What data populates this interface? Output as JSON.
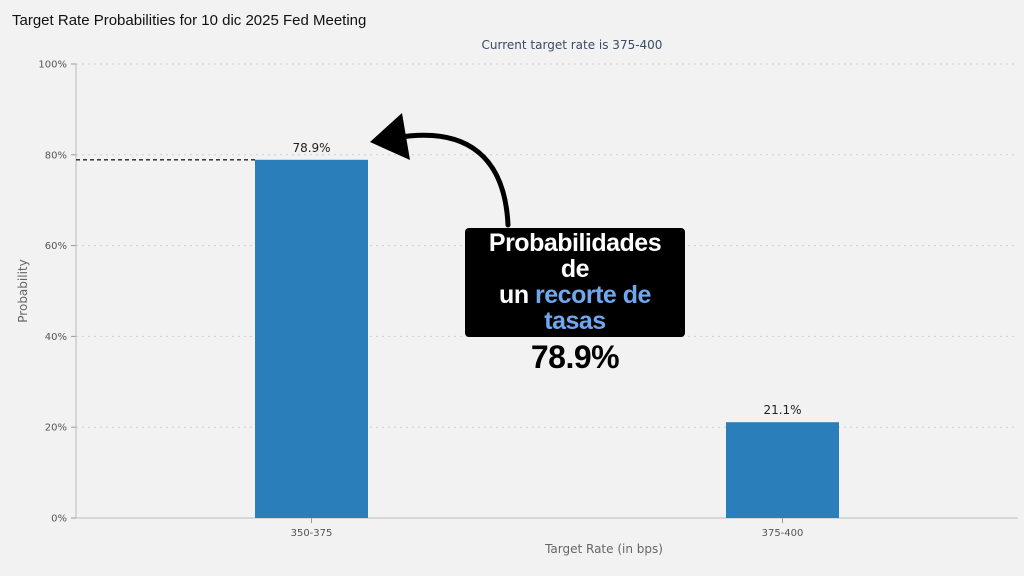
{
  "page": {
    "title": "Target Rate Probabilities for 10 dic 2025 Fed Meeting"
  },
  "chart_data": {
    "type": "bar",
    "title": "Target Rate Probabilities for 10 dic 2025 Fed Meeting",
    "subtitle": "Current target rate is 375-400",
    "xlabel": "Target Rate (in bps)",
    "ylabel": "Probability",
    "categories": [
      "350-375",
      "375-400"
    ],
    "values": [
      78.9,
      21.1
    ],
    "value_labels": [
      "78.9%",
      "21.1%"
    ],
    "ylim": [
      0,
      100
    ],
    "yticks": [
      0,
      20,
      40,
      60,
      80,
      100
    ],
    "ytick_labels": [
      "0%",
      "20%",
      "40%",
      "60%",
      "80%",
      "100%"
    ],
    "grid": true,
    "bar_color": "#2a7fba",
    "reference_line_value": 78.9
  },
  "annotation": {
    "line1": "Probabilidades de",
    "line2_prefix": "un",
    "line2_highlight": "recorte de tasas",
    "value": "78.9%",
    "highlight_color": "#6fa8ef",
    "icon": "curved-arrow-icon"
  }
}
